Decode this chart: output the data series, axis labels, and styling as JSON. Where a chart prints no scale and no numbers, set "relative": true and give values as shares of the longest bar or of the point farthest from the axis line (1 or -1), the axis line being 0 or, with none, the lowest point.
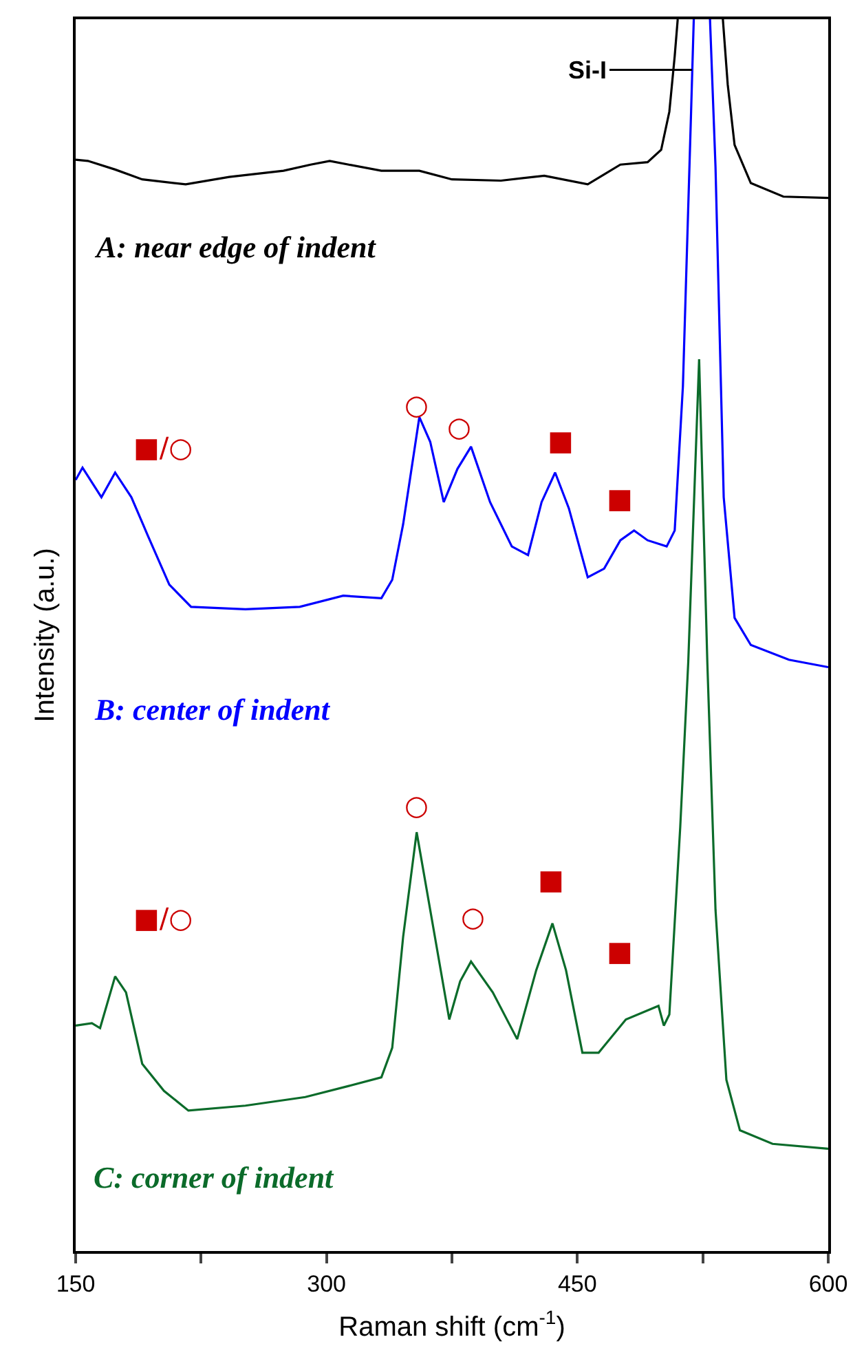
{
  "chart_data": {
    "type": "line",
    "relative": true,
    "xlabel": "Raman shift (cm$^{-1}$)",
    "ylabel": "Intensity (a.u.)",
    "xlim": [
      150,
      600
    ],
    "xticks": [
      150,
      {
        "value": 225,
        "label": null
      },
      300,
      {
        "value": 375,
        "label": null
      },
      450,
      {
        "value": 525,
        "label": null
      },
      600
    ],
    "legend": false,
    "marker": "none",
    "line_style": "solid",
    "series": [
      {
        "name": "A: near edge of indent",
        "color": "#000000",
        "x": [
          150,
          157.3,
          173.6,
          189.8,
          215.8,
          241.8,
          274.3,
          290.5,
          301.9,
          313.3,
          332.8,
          355.5,
          375.0,
          404.3,
          430.2,
          456.2,
          475.7,
          492.0,
          500.1,
          505.0,
          508.2,
          510,
          524,
          537,
          539.9,
          544,
          553.7,
          573.2,
          600
        ],
        "values": [
          0.886,
          0.885,
          0.878,
          0.87,
          0.866,
          0.872,
          0.877,
          0.882,
          0.885,
          0.882,
          0.877,
          0.877,
          0.87,
          0.869,
          0.873,
          0.866,
          0.882,
          0.884,
          0.894,
          0.925,
          0.97,
          1.0,
          null,
          1.0,
          0.947,
          0.898,
          0.867,
          0.856,
          0.855
        ]
      },
      {
        "name": "B: center of indent",
        "color": "#0000ff",
        "x": [
          150,
          154.1,
          165.4,
          173.6,
          183.3,
          193.1,
          206.0,
          219.0,
          251.5,
          284.0,
          310.0,
          332.8,
          339.3,
          345.8,
          355.5,
          362.0,
          370.1,
          378.3,
          386.4,
          397.8,
          410.8,
          420.5,
          428.6,
          436.7,
          444.9,
          456.2,
          466.0,
          475.7,
          483.9,
          492.0,
          503.4,
          508.2,
          513.1,
          518.0,
          519.6,
          524,
          529.3,
          532.6,
          537.5,
          544.0,
          553.7,
          576.5,
          600
        ],
        "values": [
          0.626,
          0.636,
          0.612,
          0.632,
          0.612,
          0.581,
          0.541,
          0.523,
          0.521,
          0.523,
          0.532,
          0.53,
          0.545,
          0.59,
          0.677,
          0.657,
          0.608,
          0.635,
          0.653,
          0.608,
          0.572,
          0.565,
          0.608,
          0.632,
          0.603,
          0.547,
          0.554,
          0.577,
          0.585,
          0.577,
          0.572,
          0.585,
          0.702,
          0.925,
          1.0,
          null,
          1.0,
          0.88,
          0.612,
          0.514,
          0.492,
          0.48,
          0.474
        ]
      },
      {
        "name": "C: corner of indent",
        "color": "#0b6b2a",
        "x": [
          150,
          159.7,
          164.6,
          173.6,
          180.1,
          189.8,
          202.8,
          217.4,
          251.5,
          287.3,
          313.3,
          332.8,
          339.3,
          345.8,
          353.9,
          362.0,
          373.4,
          379.9,
          386.4,
          399.4,
          414.0,
          425.4,
          435.1,
          443.2,
          453.0,
          462.7,
          479.0,
          498.5,
          501.7,
          505.0,
          511.5,
          516.3,
          522.8,
          527.7,
          532.6,
          539.1,
          547.2,
          566.7,
          600
        ],
        "values": [
          0.183,
          0.185,
          0.181,
          0.223,
          0.21,
          0.152,
          0.13,
          0.114,
          0.118,
          0.125,
          0.134,
          0.141,
          0.165,
          0.255,
          0.34,
          0.277,
          0.188,
          0.219,
          0.235,
          0.21,
          0.172,
          0.228,
          0.266,
          0.228,
          0.161,
          0.161,
          0.188,
          0.199,
          0.183,
          0.192,
          0.344,
          0.478,
          0.724,
          0.478,
          0.277,
          0.139,
          0.098,
          0.087,
          0.083
        ]
      }
    ],
    "annotations": [
      "Si-I",
      "■/○",
      "○",
      "○",
      "■",
      "■",
      "■/○",
      "○",
      "○",
      "■",
      "■"
    ]
  }
}
